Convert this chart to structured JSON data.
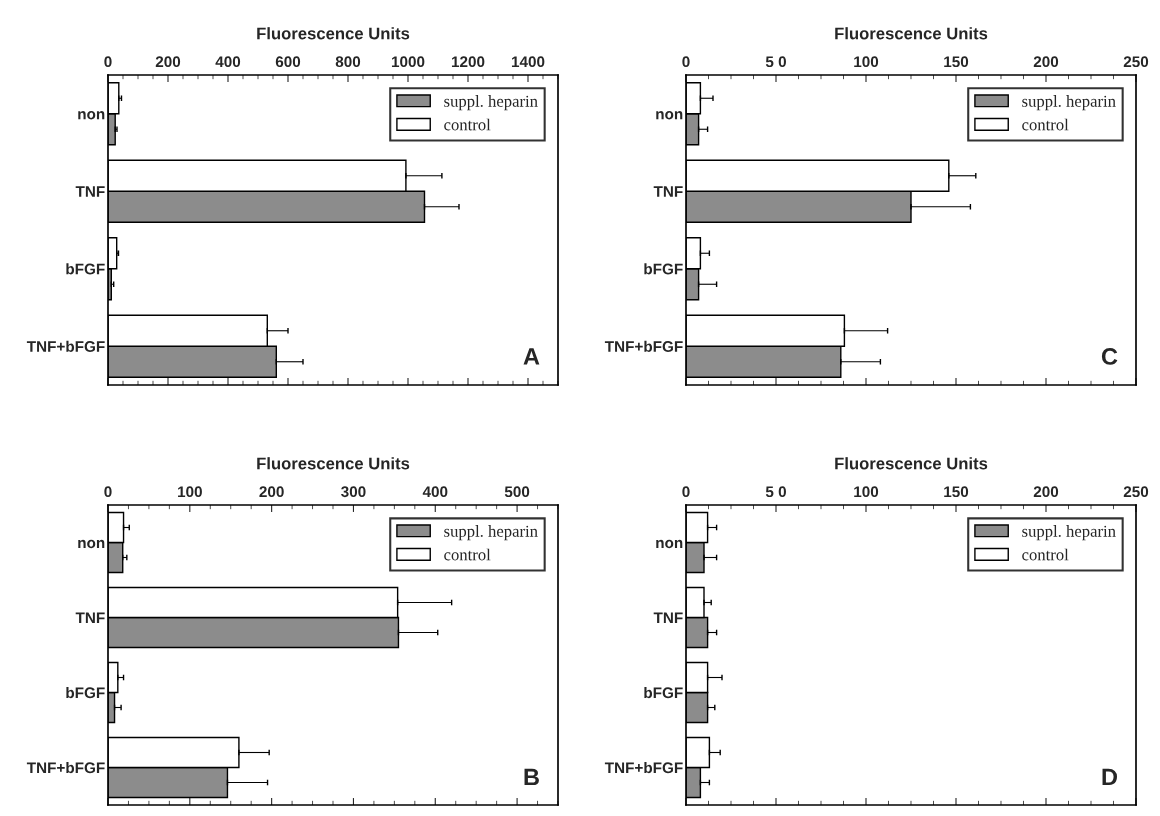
{
  "chart_data": [
    {
      "type": "bar",
      "orientation": "horizontal",
      "xlabel": "Fluorescence Units",
      "categories": [
        "non",
        "TNF",
        "bFGF",
        "TNF+bFGF"
      ],
      "xlim": [
        0,
        1500
      ],
      "xticks": [
        0,
        200,
        400,
        600,
        800,
        1000,
        1200,
        1400
      ],
      "legend": "top right",
      "annotations": [
        "A"
      ],
      "series": [
        {
          "name": "suppl. heparin",
          "color": "#8c8c8c",
          "values": [
            24,
            1055,
            11,
            561
          ],
          "errors": [
            [
              24,
              30
            ],
            [
              1055,
              1170
            ],
            [
              11,
              19
            ],
            [
              561,
              650
            ]
          ]
        },
        {
          "name": "control",
          "color": "#ffffff",
          "values": [
            36,
            993,
            29,
            531
          ],
          "errors": [
            [
              36,
              45
            ],
            [
              993,
              1113
            ],
            [
              29,
              35
            ],
            [
              531,
              600
            ]
          ]
        }
      ]
    },
    {
      "type": "bar",
      "orientation": "horizontal",
      "xlabel": "Fluorescence Units",
      "categories": [
        "non",
        "TNF",
        "bFGF",
        "TNF+bFGF"
      ],
      "xlim": [
        0,
        250
      ],
      "xticks": [
        0,
        {
          "value": 50,
          "label": "5 0"
        },
        100,
        150,
        200,
        250
      ],
      "legend": "top right",
      "annotations": [
        "C"
      ],
      "series": [
        {
          "name": "suppl. heparin",
          "color": "#8c8c8c",
          "values": [
            7,
            125,
            7,
            86
          ],
          "errors": [
            [
              7,
              12
            ],
            [
              125,
              158
            ],
            [
              7,
              17
            ],
            [
              86,
              108
            ]
          ]
        },
        {
          "name": "control",
          "color": "#ffffff",
          "values": [
            8,
            146,
            8,
            88
          ],
          "errors": [
            [
              8,
              15
            ],
            [
              146,
              161
            ],
            [
              8,
              13
            ],
            [
              88,
              112
            ]
          ]
        }
      ]
    },
    {
      "type": "bar",
      "orientation": "horizontal",
      "xlabel": "Fluorescence Units",
      "categories": [
        "non",
        "TNF",
        "bFGF",
        "TNF+bFGF"
      ],
      "xlim": [
        0,
        550
      ],
      "xticks": [
        0,
        100,
        200,
        300,
        400,
        500
      ],
      "legend": "top right",
      "annotations": [
        "B"
      ],
      "series": [
        {
          "name": "suppl. heparin",
          "color": "#8c8c8c",
          "values": [
            18,
            355,
            8,
            146
          ],
          "errors": [
            [
              18,
              23
            ],
            [
              355,
              403
            ],
            [
              8,
              16
            ],
            [
              146,
              195
            ]
          ]
        },
        {
          "name": "control",
          "color": "#ffffff",
          "values": [
            19,
            354,
            12,
            160
          ],
          "errors": [
            [
              19,
              26
            ],
            [
              354,
              420
            ],
            [
              12,
              19
            ],
            [
              160,
              197
            ]
          ]
        }
      ]
    },
    {
      "type": "bar",
      "orientation": "horizontal",
      "xlabel": "Fluorescence Units",
      "categories": [
        "non",
        "TNF",
        "bFGF",
        "TNF+bFGF"
      ],
      "xlim": [
        0,
        250
      ],
      "xticks": [
        0,
        {
          "value": 50,
          "label": "5 0"
        },
        100,
        150,
        200,
        250
      ],
      "legend": "top right",
      "annotations": [
        "D"
      ],
      "series": [
        {
          "name": "suppl. heparin",
          "color": "#8c8c8c",
          "values": [
            10,
            12,
            12,
            8
          ],
          "errors": [
            [
              10,
              17
            ],
            [
              12,
              17
            ],
            [
              12,
              16
            ],
            [
              8,
              13
            ]
          ]
        },
        {
          "name": "control",
          "color": "#ffffff",
          "values": [
            12,
            10,
            12,
            13
          ],
          "errors": [
            [
              12,
              17
            ],
            [
              10,
              14
            ],
            [
              12,
              20
            ],
            [
              13,
              19
            ]
          ]
        }
      ]
    }
  ]
}
